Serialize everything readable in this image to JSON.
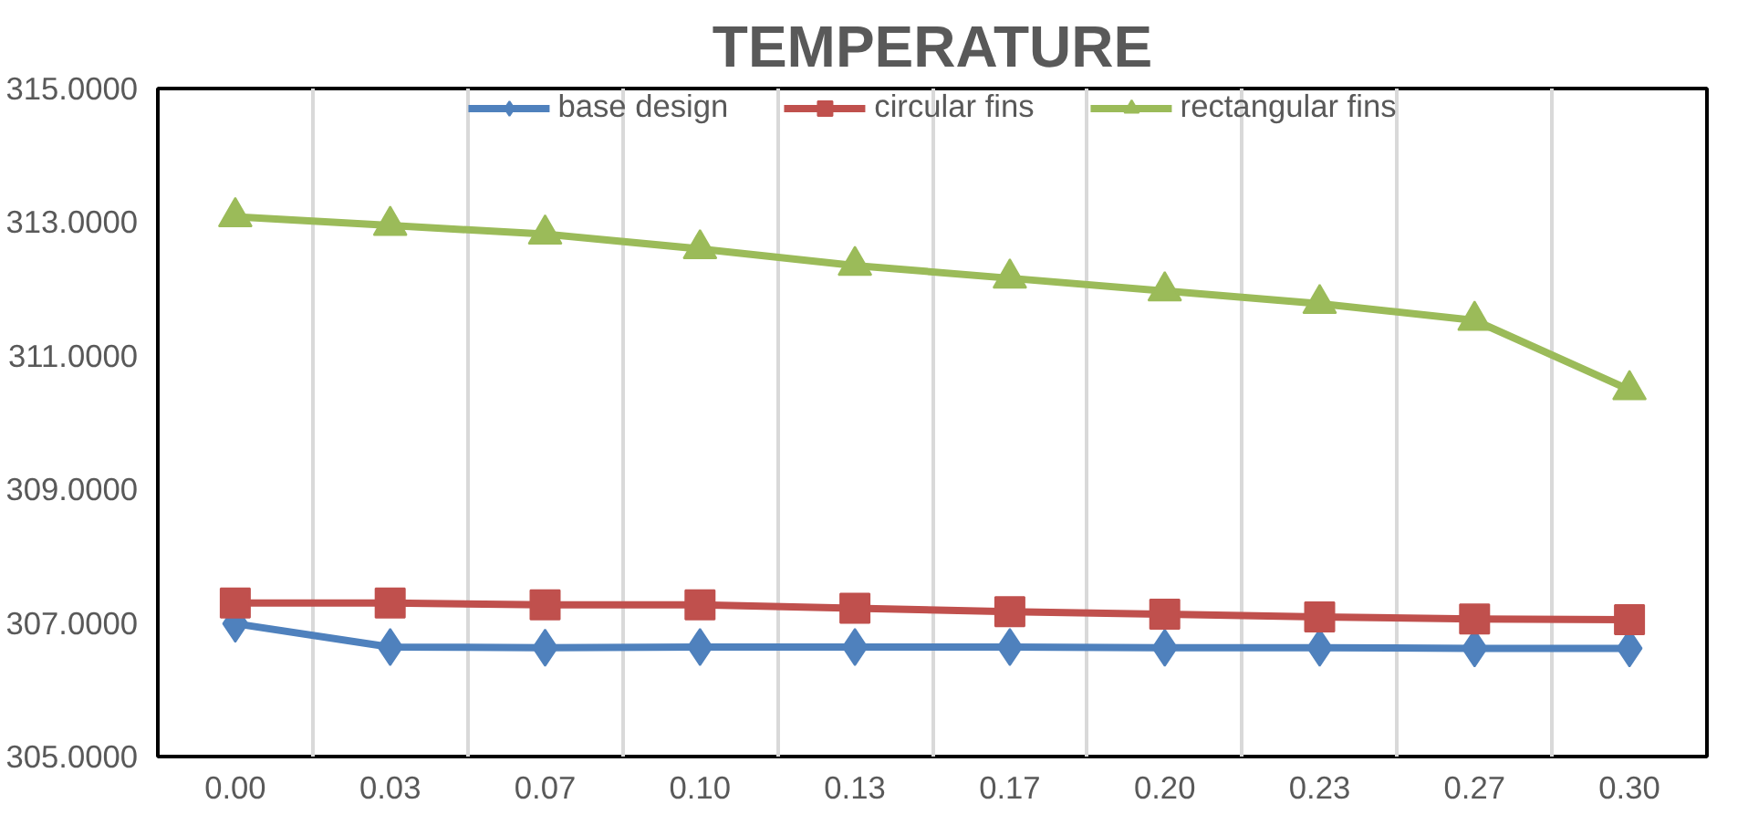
{
  "chart_data": {
    "type": "line",
    "title": "TEMPERATURE",
    "categories": [
      "0.00",
      "0.03",
      "0.07",
      "0.10",
      "0.13",
      "0.17",
      "0.20",
      "0.23",
      "0.27",
      "0.30"
    ],
    "series": [
      {
        "name": "base design",
        "color": "#4f81bd",
        "marker": "diamond",
        "values": [
          306.99,
          306.64,
          306.63,
          306.64,
          306.64,
          306.64,
          306.63,
          306.63,
          306.62,
          306.62
        ]
      },
      {
        "name": "circular fins",
        "color": "#c0504d",
        "marker": "square",
        "values": [
          307.3,
          307.3,
          307.27,
          307.27,
          307.22,
          307.17,
          307.13,
          307.09,
          307.06,
          307.05
        ]
      },
      {
        "name": "rectangular fins",
        "color": "#9bbb59",
        "marker": "triangle",
        "values": [
          313.08,
          312.95,
          312.82,
          312.6,
          312.35,
          312.16,
          311.97,
          311.78,
          311.53,
          310.49
        ]
      }
    ],
    "ylim": [
      305,
      315
    ],
    "yticks": [
      {
        "value": 305,
        "label": "305.0000"
      },
      {
        "value": 307,
        "label": "307.0000"
      },
      {
        "value": 309,
        "label": "309.0000"
      },
      {
        "value": 311,
        "label": "311.0000"
      },
      {
        "value": 313,
        "label": "313.0000"
      },
      {
        "value": 315,
        "label": "315.0000"
      }
    ],
    "grid": "x",
    "legend": "top",
    "line_style": "solid"
  }
}
